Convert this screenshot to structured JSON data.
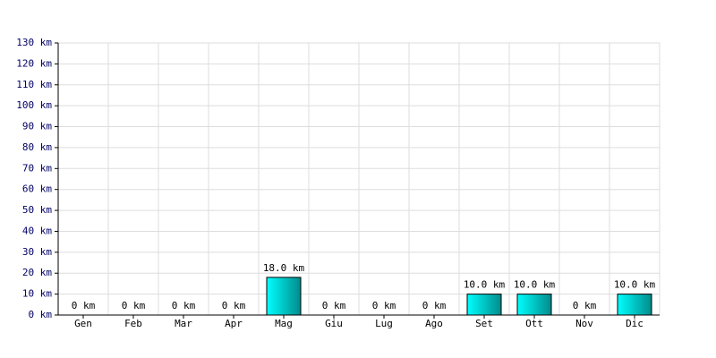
{
  "chart_data": {
    "type": "bar",
    "categories": [
      "Gen",
      "Feb",
      "Mar",
      "Apr",
      "Mag",
      "Giu",
      "Lug",
      "Ago",
      "Set",
      "Ott",
      "Nov",
      "Dic"
    ],
    "values": [
      0,
      0,
      0,
      0,
      18,
      0,
      0,
      0,
      10,
      10,
      0,
      10
    ],
    "value_labels": [
      "0 km",
      "0 km",
      "0 km",
      "0 km",
      "18.0 km",
      "0 km",
      "0 km",
      "0 km",
      "10.0 km",
      "10.0 km",
      "0 km",
      "10.0 km"
    ],
    "color": "#008b8b",
    "ylim": [
      0,
      130
    ],
    "yticks": [
      {
        "value": 0,
        "label": "0 km"
      },
      {
        "value": 10,
        "label": "10 km"
      },
      {
        "value": 20,
        "label": "20 km"
      },
      {
        "value": 30,
        "label": "30 km"
      },
      {
        "value": 40,
        "label": "40 km"
      },
      {
        "value": 50,
        "label": "50 km"
      },
      {
        "value": 60,
        "label": "60 km"
      },
      {
        "value": 70,
        "label": "70 km"
      },
      {
        "value": 80,
        "label": "80 km"
      },
      {
        "value": 90,
        "label": "90 km"
      },
      {
        "value": 100,
        "label": "100 km"
      },
      {
        "value": 110,
        "label": "110 km"
      },
      {
        "value": 120,
        "label": "120 km"
      },
      {
        "value": 130,
        "label": "130 km"
      }
    ],
    "grid": true
  }
}
